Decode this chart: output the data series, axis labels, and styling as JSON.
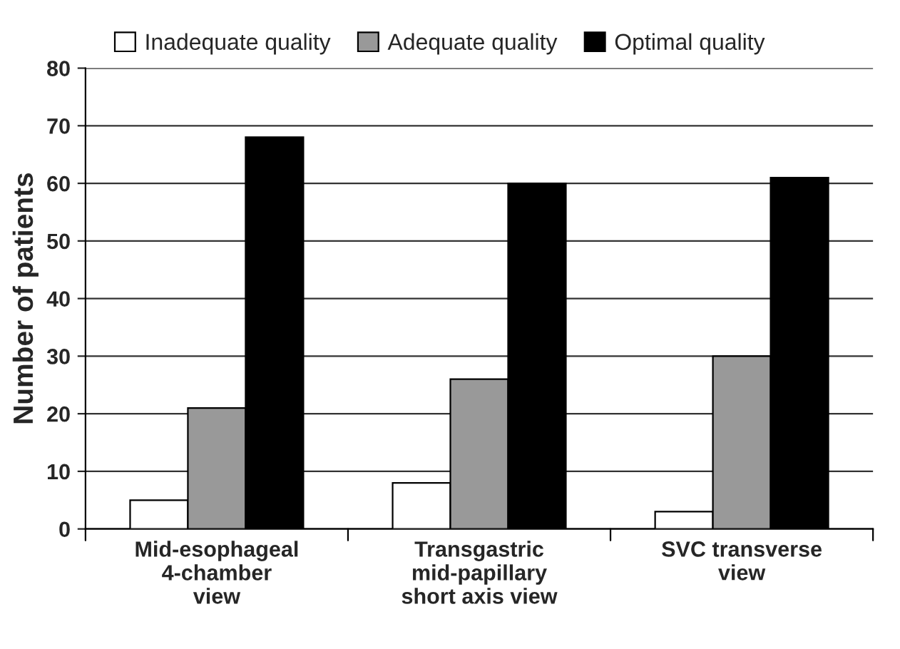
{
  "chart_data": {
    "type": "bar",
    "ylabel": "Number of patients",
    "categories": [
      "Mid-esophageal\n4-chamber\nview",
      "Transgastric\nmid-papillary\nshort axis view",
      "SVC transverse\nview"
    ],
    "series": [
      {
        "name": "Inadequate quality",
        "color": "#ffffff",
        "values": [
          5,
          8,
          3
        ]
      },
      {
        "name": "Adequate quality",
        "color": "#999999",
        "values": [
          21,
          26,
          30
        ]
      },
      {
        "name": "Optimal quality",
        "color": "#000000",
        "values": [
          68,
          60,
          61
        ]
      }
    ],
    "ylim": [
      0,
      80
    ],
    "yticks": [
      0,
      10,
      20,
      30,
      40,
      50,
      60,
      70,
      80
    ],
    "grid": "y",
    "legend": "top"
  }
}
